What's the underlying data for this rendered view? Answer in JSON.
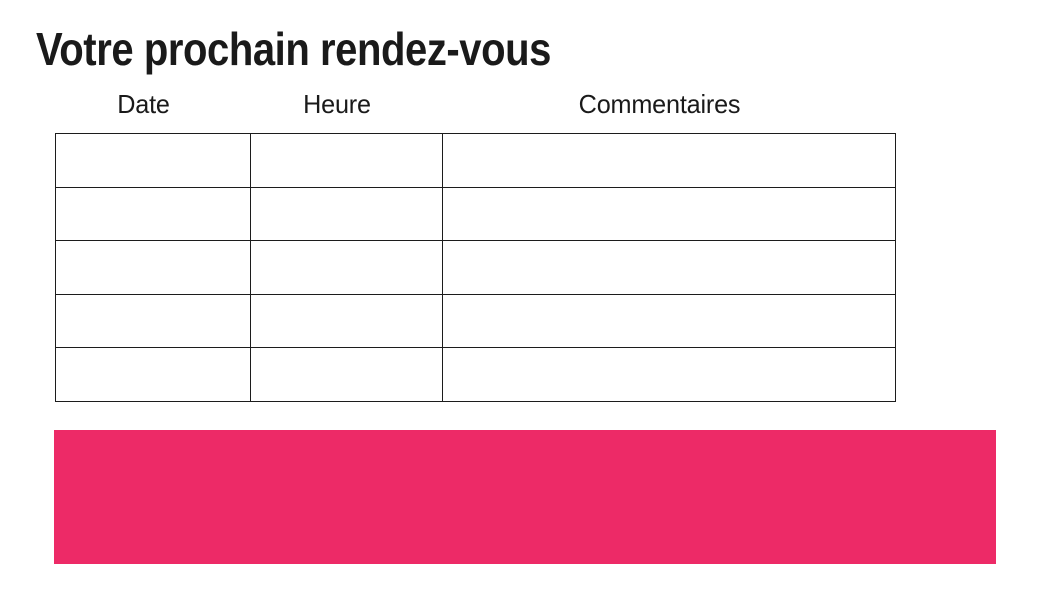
{
  "document": {
    "title": "Votre prochain rendez-vous"
  },
  "appointments_table": {
    "columns": [
      "Date",
      "Heure",
      "Commentaires"
    ],
    "rows": [
      [
        "",
        "",
        ""
      ],
      [
        "",
        "",
        ""
      ],
      [
        "",
        "",
        ""
      ],
      [
        "",
        "",
        ""
      ],
      [
        "",
        "",
        ""
      ]
    ]
  },
  "colors": {
    "accent_pink": "#ED2A67",
    "table_border": "#1C1C1C",
    "text": "#1A1A1A",
    "background": "#FFFFFF"
  }
}
